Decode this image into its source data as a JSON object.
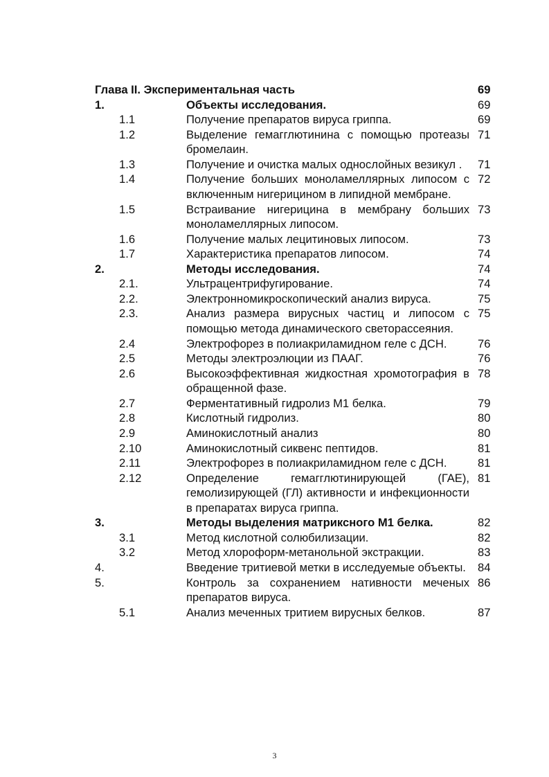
{
  "toc": {
    "title": {
      "text": "Глава II.  Экспериментальная часть",
      "page": "69"
    },
    "entries": [
      {
        "num": "1.",
        "text": "Объекты исследования.",
        "page": "69",
        "level": 0,
        "bold": true
      },
      {
        "num": "1.1",
        "text": "Получение препаратов вируса гриппа.",
        "page": "69",
        "level": 1
      },
      {
        "num": "1.2",
        "text": "Выделение гемагглютинина с помощью протеазы бромелаин.",
        "page": "71",
        "level": 1
      },
      {
        "num": "1.3",
        "text": "Получение и очистка малых однослойных везикул .",
        "page": "71",
        "level": 1
      },
      {
        "num": "1.4",
        "text": "Получение больших моноламеллярных липосом с включенным нигерицином в липидной мембране.",
        "page": "72",
        "level": 1
      },
      {
        "num": "1.5",
        "text": " Встраивание нигерицина в мембрану больших моноламеллярных липосом.",
        "page": "73",
        "level": 1
      },
      {
        "num": "1.6",
        "text": "Получение малых лецитиновых липосом.",
        "page": "73",
        "level": 1
      },
      {
        "num": "1.7",
        "text": "Характеристика препаратов липосом.",
        "page": "74",
        "level": 1
      },
      {
        "num": "2.",
        "text": "Методы исследования.",
        "page": "74",
        "level": 0,
        "bold": true
      },
      {
        "num": "2.1.",
        "text": "Ультрацентрифугирование.",
        "page": "74",
        "level": 1
      },
      {
        "num": "2.2.",
        "text": "Электронномикроскопический анализ вируса.",
        "page": "75",
        "level": 1
      },
      {
        "num": "2.3.",
        "text": "Анализ размера вирусных частиц и липосом с помощью метода динамического светорассеяния.",
        "page": "75",
        "level": 1
      },
      {
        "num": "2.4",
        "text": "Электрофорез в полиакриламидном геле с ДСН.",
        "page": "76",
        "level": 1
      },
      {
        "num": "2.5",
        "text": "Методы электроэлюции из ПААГ.",
        "page": "76",
        "level": 1
      },
      {
        "num": "2.6",
        "text": "Высокоэффективная жидкостная хромотография в обращенной фазе.",
        "page": "78",
        "level": 1
      },
      {
        "num": "2.7",
        "text": "Ферментативный гидролиз М1 белка.",
        "page": "79",
        "level": 1
      },
      {
        "num": "2.8",
        "text": "Кислотный гидролиз.",
        "page": "80",
        "level": 1
      },
      {
        "num": "2.9",
        "text": "Аминокислотный анализ",
        "page": "80",
        "level": 1
      },
      {
        "num": "2.10",
        "text": "Аминокислотный сиквенс пептидов.",
        "page": "81",
        "level": 1
      },
      {
        "num": "2.11",
        "text": "Электрофорез в полиакриламидном геле с ДСН.",
        "page": "81",
        "level": 1
      },
      {
        "num": "2.12",
        "text": "Определение гемагглютинирующей (ГАЕ), гемолизирующей (ГЛ) активности и инфекционности в препаратах вируса гриппа.",
        "page": "81",
        "level": 1
      },
      {
        "num": "3.",
        "text": "Методы выделения  матриксного М1 белка.",
        "page": "82",
        "level": 0,
        "bold": true
      },
      {
        "num": "3.1",
        "text": "Метод кислотной солюбилизации.",
        "page": "82",
        "level": 1
      },
      {
        "num": "3.2",
        "text": "Метод хлороформ-метанольной экстракции.",
        "page": "83",
        "level": 1
      },
      {
        "num": "4.",
        "text": "Введение тритиевой метки в исследуемые объекты.",
        "page": "84",
        "level": 0
      },
      {
        "num": "5.",
        "text": "Контроль за сохранением нативности меченых препаратов вируса.",
        "page": "86",
        "level": 0
      },
      {
        "num": "5.1",
        "text": "Анализ меченных тритием вирусных белков.",
        "page": "87",
        "level": 1
      }
    ]
  },
  "page_number": "3"
}
